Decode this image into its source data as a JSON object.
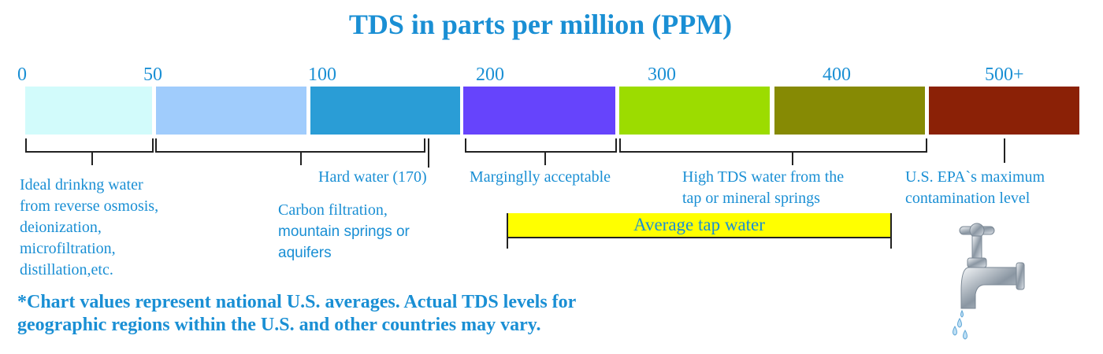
{
  "title": "TDS in parts per million (PPM)",
  "scale_labels": [
    "0",
    "50",
    "100",
    "200",
    "300",
    "400",
    "500+"
  ],
  "segments": [
    {
      "color": "#d2fbfb"
    },
    {
      "color": "#a0ccfc"
    },
    {
      "color": "#2a9dd6"
    },
    {
      "color": "#6644fc"
    },
    {
      "color": "#9cdc00"
    },
    {
      "color": "#868a04"
    },
    {
      "color": "#8b2106"
    }
  ],
  "annotations": {
    "ideal": [
      "Ideal drinkng water",
      "from reverse osmosis,",
      "deionization,",
      "microfiltration,",
      "distillation,etc."
    ],
    "carbon": [
      "Carbon filtration,",
      "mountain springs or",
      "aquifers"
    ],
    "hard_water": "Hard water (170)",
    "marginal": "Marginglly acceptable",
    "high_tds": [
      "High TDS water from the",
      "tap or mineral springs"
    ],
    "epa": [
      "U.S. EPA`s maximum",
      "contamination level"
    ]
  },
  "average_bar": {
    "label": "Average tap water",
    "color": "#ffff00"
  },
  "footnote": [
    "*Chart values represent national U.S. averages.   Actual TDS levels for",
    "geographic regions within the U.S. and other countries may vary."
  ],
  "icons": [
    "faucet-icon"
  ]
}
